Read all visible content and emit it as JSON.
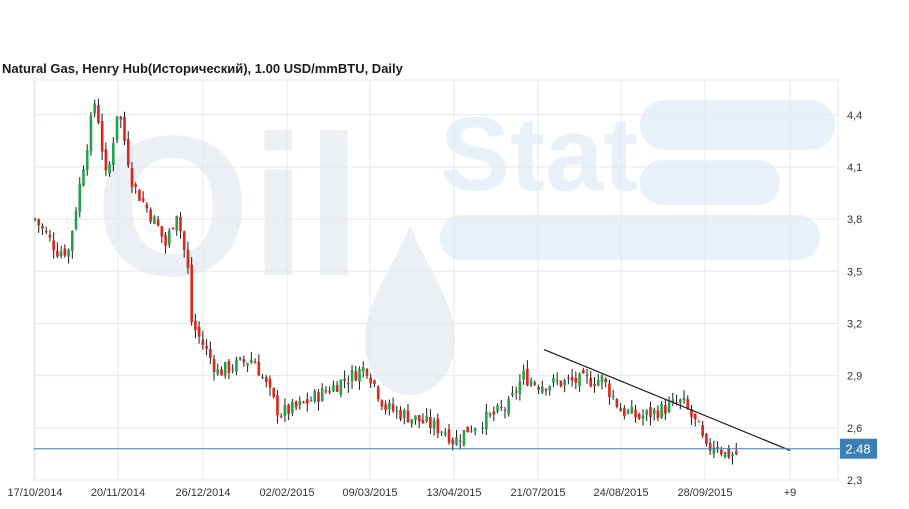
{
  "title": "Natural Gas, Henry Hub(Исторический), 1.00 USD/mmBTU, Daily",
  "watermark": {
    "left": "Oil",
    "right": "Stat"
  },
  "colors": {
    "up": "#23a14a",
    "down": "#e2231a",
    "wick": "#1a1a1a",
    "grid": "#e4e8ee",
    "level_line": "#3a7fb5",
    "level_badge": "#3a7fb5",
    "trendline": "#1a1a1a",
    "watermark": "#eceff3",
    "watermark_accent": "#e8f1fa"
  },
  "chart_data": {
    "type": "candlestick",
    "title": "Natural Gas, Henry Hub(Исторический), 1.00 USD/mmBTU, Daily",
    "ylim": [
      2.3,
      4.6
    ],
    "y_ticks": [
      "4,4",
      "4,1",
      "3,8",
      "3,5",
      "3,2",
      "2,9",
      "2,6",
      "2,3"
    ],
    "y_tick_values": [
      4.4,
      4.1,
      3.8,
      3.5,
      3.2,
      2.9,
      2.6,
      2.3
    ],
    "x_ticks": [
      "17/10/2014",
      "20/11/2014",
      "26/12/2014",
      "02/02/2015",
      "09/03/2015",
      "13/04/2015",
      "21/07/2015",
      "24/08/2015",
      "28/09/2015",
      "+9"
    ],
    "grid": true,
    "gap_after_date": "13/04/2015",
    "current_level": {
      "value": 2.48,
      "label": "2.48"
    },
    "trendline": {
      "from": {
        "date": "21/07/2015",
        "price": 3.05
      },
      "to": {
        "date": "+9",
        "price": 2.47
      }
    },
    "anchors": [
      {
        "x_tick": "17/10/2014",
        "close": 3.8
      },
      {
        "x_tick": "17/10/2014",
        "close": 3.62,
        "offset": 6
      },
      {
        "x_tick": "17/10/2014",
        "close": 3.62,
        "offset": 9
      },
      {
        "x_tick": "20/11/2014",
        "close": 4.15,
        "offset": -9
      },
      {
        "x_tick": "20/11/2014",
        "close": 4.5,
        "offset": -6
      },
      {
        "x_tick": "20/11/2014",
        "close": 4.0,
        "offset": -3
      },
      {
        "x_tick": "20/11/2014",
        "close": 4.45
      },
      {
        "x_tick": "20/11/2014",
        "close": 4.0,
        "offset": 4
      },
      {
        "x_tick": "26/12/2014",
        "close": 3.75,
        "offset": -12
      },
      {
        "x_tick": "26/12/2014",
        "close": 3.65,
        "offset": -10
      },
      {
        "x_tick": "26/12/2014",
        "close": 3.85,
        "offset": -7
      },
      {
        "x_tick": "26/12/2014",
        "close": 3.5,
        "offset": -4
      },
      {
        "x_tick": "26/12/2014",
        "close": 3.2,
        "offset": -3
      },
      {
        "x_tick": "26/12/2014",
        "close": 2.92,
        "offset": 4
      },
      {
        "x_tick": "02/02/2015",
        "close": 3.0,
        "offset": -9
      },
      {
        "x_tick": "02/02/2015",
        "close": 2.68,
        "offset": -2
      },
      {
        "x_tick": "02/02/2015",
        "close": 2.72,
        "offset": 3
      },
      {
        "x_tick": "09/03/2015",
        "close": 2.95,
        "offset": -1
      },
      {
        "x_tick": "09/03/2015",
        "close": 2.72,
        "offset": 4
      },
      {
        "x_tick": "13/04/2015",
        "close": 2.58,
        "offset": -2
      },
      {
        "x_tick": "13/04/2015",
        "close": 2.52
      },
      {
        "x_tick": "13/04/2015",
        "close": 2.6,
        "offset": 4
      },
      {
        "x_tick": "21/07/2015",
        "close": 2.72,
        "offset": -8
      },
      {
        "x_tick": "21/07/2015",
        "close": 2.9,
        "offset": -4
      },
      {
        "x_tick": "21/07/2015",
        "close": 2.85
      },
      {
        "x_tick": "24/08/2015",
        "close": 2.88,
        "offset": -5
      },
      {
        "x_tick": "24/08/2015",
        "close": 2.7
      },
      {
        "x_tick": "24/08/2015",
        "close": 2.66,
        "offset": 5
      },
      {
        "x_tick": "28/09/2015",
        "close": 2.75,
        "offset": -6
      },
      {
        "x_tick": "28/09/2015",
        "close": 2.57,
        "offset": -1
      },
      {
        "x_tick": "28/09/2015",
        "close": 2.46
      },
      {
        "x_tick": "28/09/2015",
        "close": 2.52,
        "offset": 3
      },
      {
        "x_tick": "28/09/2015",
        "close": 2.45,
        "offset": 5
      }
    ]
  }
}
